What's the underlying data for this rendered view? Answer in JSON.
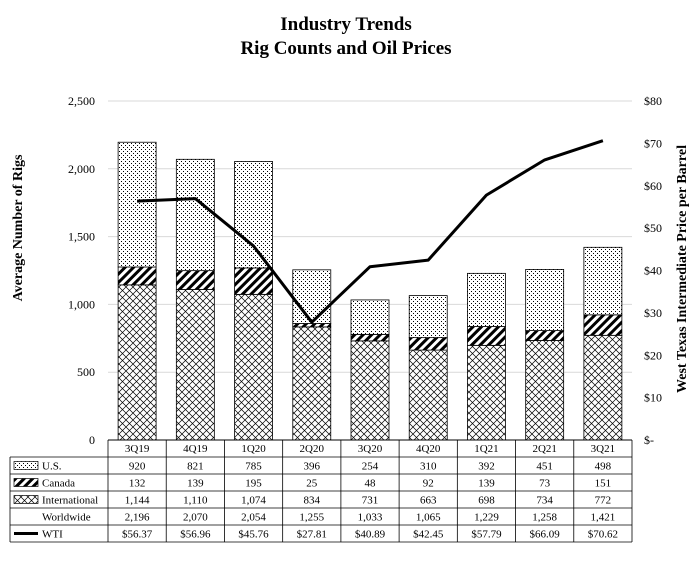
{
  "chart_data": {
    "type": "bar",
    "title_lines": [
      "Industry Trends",
      "Rig Counts and Oil Prices"
    ],
    "ylabel": "Average Number of Rigs",
    "y2label": "West Texas Intermediate Price per Barrel",
    "ylim": [
      0,
      2500
    ],
    "y2lim": [
      0,
      80
    ],
    "y_ticks": [
      "0",
      "500",
      "1,000",
      "1,500",
      "2,000",
      "2,500"
    ],
    "y2_ticks": [
      "$-",
      "$10",
      "$20",
      "$30",
      "$40",
      "$50",
      "$60",
      "$70",
      "$80"
    ],
    "grid": true,
    "stacked": true,
    "categories": [
      "3Q19",
      "4Q19",
      "1Q20",
      "2Q20",
      "3Q20",
      "4Q20",
      "1Q21",
      "2Q21",
      "3Q21"
    ],
    "series": [
      {
        "name": "U.S.",
        "kind": "bar",
        "pattern": "dots",
        "values": [
          920,
          821,
          785,
          396,
          254,
          310,
          392,
          451,
          498
        ],
        "labels": [
          "920",
          "821",
          "785",
          "396",
          "254",
          "310",
          "392",
          "451",
          "498"
        ]
      },
      {
        "name": "Canada",
        "kind": "bar",
        "pattern": "diagonal",
        "values": [
          132,
          139,
          195,
          25,
          48,
          92,
          139,
          73,
          151
        ],
        "labels": [
          "132",
          "139",
          "195",
          "25",
          "48",
          "92",
          "139",
          "73",
          "151"
        ]
      },
      {
        "name": "International",
        "kind": "bar",
        "pattern": "crosshatch",
        "values": [
          1144,
          1110,
          1074,
          834,
          731,
          663,
          698,
          734,
          772
        ],
        "labels": [
          "1,144",
          "1,110",
          "1,074",
          "834",
          "731",
          "663",
          "698",
          "734",
          "772"
        ]
      },
      {
        "name": "Worldwide",
        "kind": "total",
        "values": [
          2196,
          2070,
          2054,
          1255,
          1033,
          1065,
          1229,
          1258,
          1421
        ],
        "labels": [
          "2,196",
          "2,070",
          "2,054",
          "1,255",
          "1,033",
          "1,065",
          "1,229",
          "1,258",
          "1,421"
        ]
      },
      {
        "name": "WTI",
        "kind": "line",
        "axis": "secondary",
        "values": [
          56.37,
          56.96,
          45.76,
          27.81,
          40.89,
          42.45,
          57.79,
          66.09,
          70.62
        ],
        "labels": [
          "$56.37",
          "$56.96",
          "$45.76",
          "$27.81",
          "$40.89",
          "$42.45",
          "$57.79",
          "$66.09",
          "$70.62"
        ]
      }
    ],
    "table_row_order": [
      "U.S.",
      "Canada",
      "International",
      "Worldwide",
      "WTI"
    ],
    "colors": {
      "line": "#000000",
      "grid": "#d9d9d9",
      "border": "#000000",
      "bar_fill": "#ffffff"
    }
  }
}
